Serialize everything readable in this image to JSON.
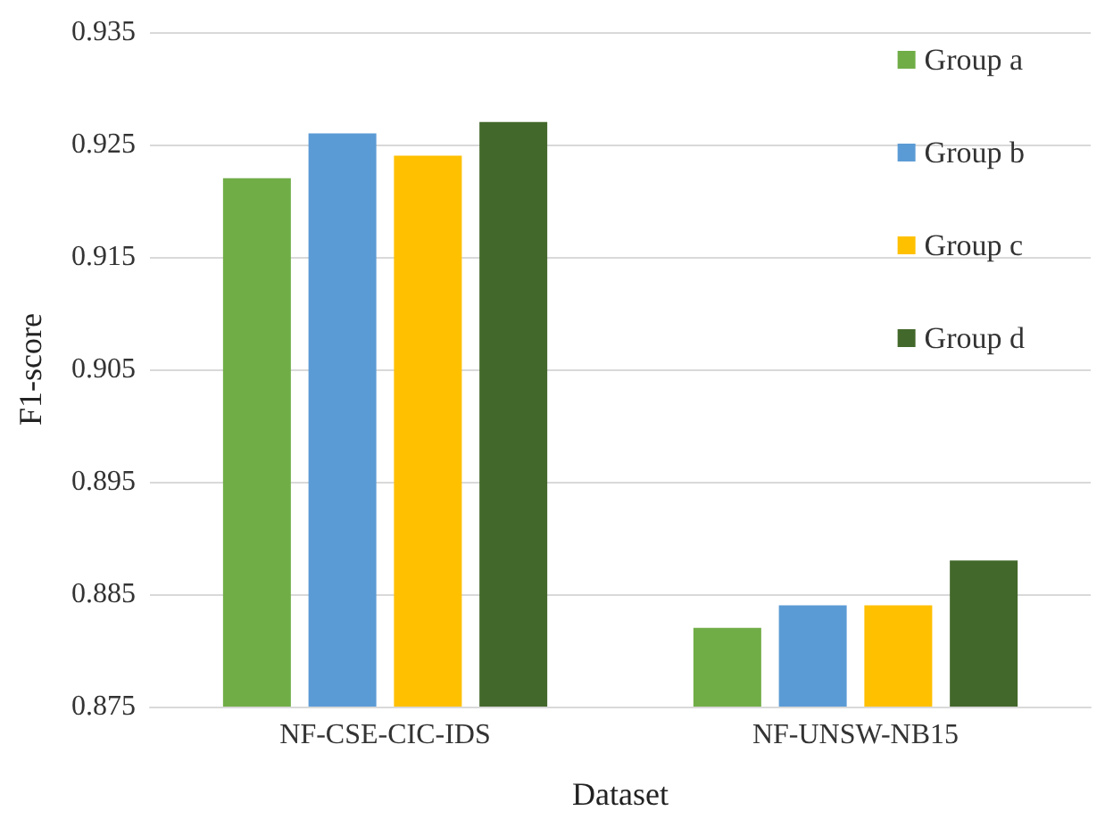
{
  "chart_data": {
    "type": "bar",
    "xlabel": "Dataset",
    "ylabel": "F1-score",
    "categories": [
      "NF-CSE-CIC-IDS",
      "NF-UNSW-NB15"
    ],
    "series": [
      {
        "name": "Group a",
        "color": "#70ad47",
        "values": [
          0.922,
          0.882
        ]
      },
      {
        "name": "Group b",
        "color": "#5b9bd5",
        "values": [
          0.926,
          0.884
        ]
      },
      {
        "name": "Group c",
        "color": "#ffc000",
        "values": [
          0.924,
          0.884
        ]
      },
      {
        "name": "Group d",
        "color": "#43682b",
        "values": [
          0.927,
          0.888
        ]
      }
    ],
    "ylim": [
      0.875,
      0.935
    ],
    "yticks": [
      0.875,
      0.885,
      0.895,
      0.905,
      0.915,
      0.925,
      0.935
    ],
    "grid": "y",
    "legend": "top right"
  }
}
